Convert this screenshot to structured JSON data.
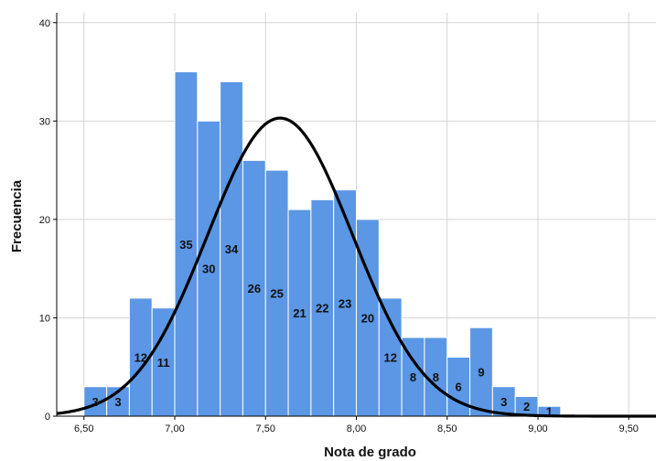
{
  "chart_data": {
    "type": "bar",
    "xlabel": "Nota de grado",
    "ylabel": "Frecuencia",
    "title": "",
    "xlim": [
      6.35,
      9.65
    ],
    "ylim": [
      0,
      41
    ],
    "x_ticks": [
      6.5,
      7.0,
      7.5,
      8.0,
      8.5,
      9.0,
      9.5
    ],
    "x_tick_labels": [
      "6,50",
      "7,00",
      "7,50",
      "8,00",
      "8,50",
      "9,00",
      "9,50"
    ],
    "y_ticks": [
      0,
      10,
      20,
      30,
      40
    ],
    "y_tick_labels": [
      "0",
      "10",
      "20",
      "30",
      "40"
    ],
    "grid": true,
    "bins": [
      {
        "start": 6.5,
        "end": 6.625,
        "value": 3,
        "label": "3"
      },
      {
        "start": 6.625,
        "end": 6.75,
        "value": 3,
        "label": "3"
      },
      {
        "start": 6.75,
        "end": 6.875,
        "value": 12,
        "label": "12"
      },
      {
        "start": 6.875,
        "end": 7.0,
        "value": 11,
        "label": "11"
      },
      {
        "start": 7.0,
        "end": 7.125,
        "value": 35,
        "label": "35"
      },
      {
        "start": 7.125,
        "end": 7.25,
        "value": 30,
        "label": "30"
      },
      {
        "start": 7.25,
        "end": 7.375,
        "value": 34,
        "label": "34"
      },
      {
        "start": 7.375,
        "end": 7.5,
        "value": 26,
        "label": "26"
      },
      {
        "start": 7.5,
        "end": 7.625,
        "value": 25,
        "label": "25"
      },
      {
        "start": 7.625,
        "end": 7.75,
        "value": 21,
        "label": "21"
      },
      {
        "start": 7.75,
        "end": 7.875,
        "value": 22,
        "label": "22"
      },
      {
        "start": 7.875,
        "end": 8.0,
        "value": 23,
        "label": "23"
      },
      {
        "start": 8.0,
        "end": 8.125,
        "value": 20,
        "label": "20"
      },
      {
        "start": 8.125,
        "end": 8.25,
        "value": 12,
        "label": "12"
      },
      {
        "start": 8.25,
        "end": 8.375,
        "value": 8,
        "label": "8"
      },
      {
        "start": 8.375,
        "end": 8.5,
        "value": 8,
        "label": "8"
      },
      {
        "start": 8.5,
        "end": 8.625,
        "value": 6,
        "label": "6"
      },
      {
        "start": 8.625,
        "end": 8.75,
        "value": 9,
        "label": "9"
      },
      {
        "start": 8.75,
        "end": 8.875,
        "value": 3,
        "label": "3"
      },
      {
        "start": 8.875,
        "end": 9.0,
        "value": 2,
        "label": "2"
      },
      {
        "start": 9.0,
        "end": 9.125,
        "value": 1,
        "label": "1"
      }
    ],
    "normal_curve": {
      "mean": 7.58,
      "sd": 0.4,
      "peak": 30.3
    },
    "colors": {
      "bar_fill": "#5b97e4",
      "bar_stroke": "#ffffff",
      "curve": "#000000",
      "grid": "#d4d4d4",
      "axis": "#000000"
    }
  }
}
